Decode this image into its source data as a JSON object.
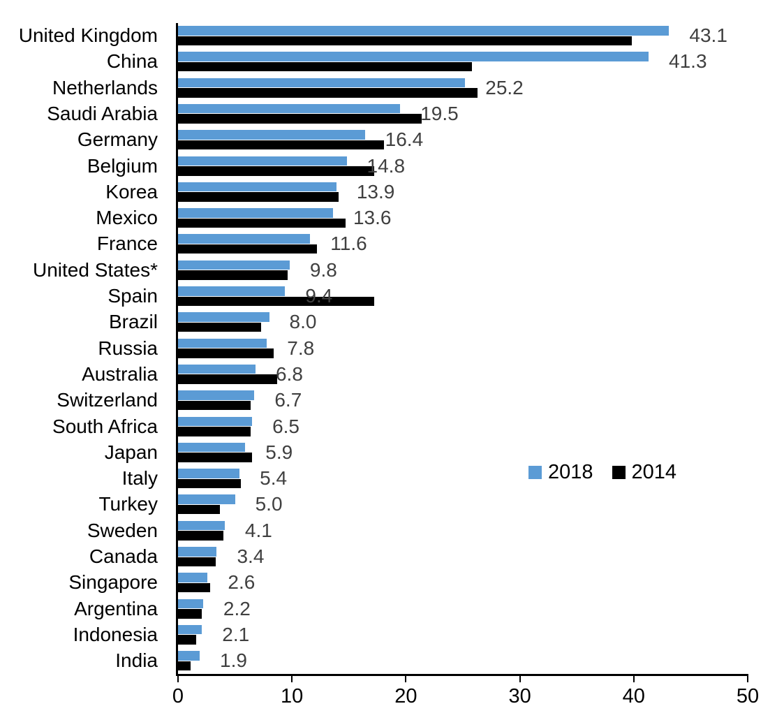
{
  "chart_data": {
    "type": "bar",
    "orientation": "horizontal",
    "title": "",
    "xlabel": "",
    "ylabel": "",
    "xlim": [
      0,
      50
    ],
    "x_ticks": [
      0,
      10,
      20,
      30,
      40,
      50
    ],
    "grid": false,
    "legend_position": "middle-right",
    "value_labels_on": "2018",
    "categories": [
      "United Kingdom",
      "China",
      "Netherlands",
      "Saudi Arabia",
      "Germany",
      "Belgium",
      "Korea",
      "Mexico",
      "France",
      "United States*",
      "Spain",
      "Brazil",
      "Russia",
      "Australia",
      "Switzerland",
      "South Africa",
      "Japan",
      "Italy",
      "Turkey",
      "Sweden",
      "Canada",
      "Singapore",
      "Argentina",
      "Indonesia",
      "India"
    ],
    "series": [
      {
        "name": "2018",
        "color": "#5B9BD5",
        "values": [
          43.1,
          41.3,
          25.2,
          19.5,
          16.4,
          14.8,
          13.9,
          13.6,
          11.6,
          9.8,
          9.4,
          8.0,
          7.8,
          6.8,
          6.7,
          6.5,
          5.9,
          5.4,
          5.0,
          4.1,
          3.4,
          2.6,
          2.2,
          2.1,
          1.9
        ]
      },
      {
        "name": "2014",
        "color": "#000000",
        "values": [
          39.8,
          25.8,
          26.3,
          21.4,
          18.1,
          17.2,
          14.1,
          14.7,
          12.2,
          9.6,
          17.2,
          7.3,
          8.4,
          8.7,
          6.4,
          6.4,
          6.5,
          5.5,
          3.7,
          4.0,
          3.3,
          2.8,
          2.1,
          1.6,
          1.1
        ]
      }
    ],
    "data_labels": [
      "43.1",
      "41.3",
      "25.2",
      "19.5",
      "16.4",
      "14.8",
      "13.9",
      "13.6",
      "11.6",
      "9.8",
      "9.4",
      "8.0",
      "7.8",
      "6.8",
      "6.7",
      "6.5",
      "5.9",
      "5.4",
      "5.0",
      "4.1",
      "3.4",
      "2.6",
      "2.2",
      "2.1",
      "1.9"
    ]
  },
  "legend": {
    "items": [
      {
        "label": "2018",
        "color": "#5B9BD5"
      },
      {
        "label": "2014",
        "color": "#000000"
      }
    ]
  },
  "colors": {
    "bar_2018": "#5B9BD5",
    "bar_2014": "#000000",
    "value_label": "#404040",
    "axis": "#000000",
    "background": "#FFFFFF"
  }
}
